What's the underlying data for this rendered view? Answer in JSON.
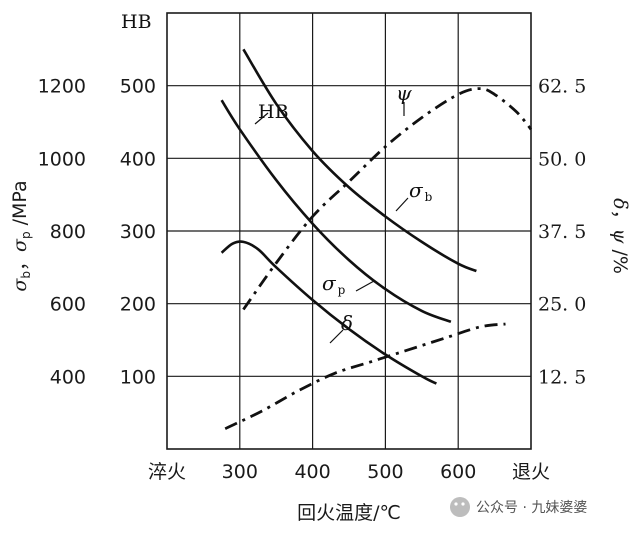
{
  "chart_data": {
    "type": "line",
    "xlabel": "回火温度/℃",
    "x_ticks": [
      "淬火",
      "300",
      "400",
      "500",
      "600",
      "退火"
    ],
    "x_tick_values": [
      200,
      300,
      400,
      500,
      600,
      700
    ],
    "xlim": [
      200,
      700
    ],
    "y_axes": {
      "hb": {
        "label": "HB",
        "ticks": [
          "100",
          "200",
          "300",
          "400",
          "500"
        ],
        "tick_values": [
          100,
          200,
          300,
          400,
          500
        ],
        "range": [
          0,
          600
        ]
      },
      "mpa": {
        "label": "σ_b，σ_p/MPa",
        "ticks": [
          "400",
          "600",
          "800",
          "1000",
          "1200"
        ],
        "tick_values": [
          400,
          600,
          800,
          1000,
          1200
        ],
        "range": [
          200,
          1400
        ]
      },
      "pct": {
        "label": "δ，ψ/%",
        "ticks": [
          "12. 5",
          "25. 0",
          "37. 5",
          "50. 0",
          "62. 5"
        ],
        "tick_values": [
          12.5,
          25.0,
          37.5,
          50.0,
          62.5
        ],
        "range": [
          0,
          75
        ]
      }
    },
    "grid": true,
    "series": [
      {
        "name": "HB",
        "axis": "hb",
        "style": "solid",
        "x": [
          275,
          300,
          350,
          400,
          450,
          500,
          550,
          590
        ],
        "y": [
          480,
          440,
          370,
          310,
          260,
          220,
          190,
          175
        ]
      },
      {
        "name": "σb",
        "axis": "mpa",
        "style": "solid",
        "x": [
          305,
          350,
          400,
          450,
          500,
          550,
          600,
          625
        ],
        "y": [
          1300,
          1150,
          1020,
          920,
          840,
          770,
          710,
          690
        ]
      },
      {
        "name": "σp",
        "axis": "mpa",
        "style": "solid",
        "x": [
          275,
          290,
          305,
          325,
          350,
          400,
          450,
          500,
          550,
          570
        ],
        "y": [
          740,
          765,
          770,
          750,
          700,
          610,
          530,
          460,
          400,
          380
        ]
      },
      {
        "name": "ψ",
        "axis": "pct",
        "style": "dash-dot",
        "x": [
          305,
          350,
          400,
          450,
          500,
          550,
          600,
          630,
          650,
          680,
          700
        ],
        "y": [
          24,
          32,
          40,
          46,
          52,
          57,
          61,
          62,
          61,
          58,
          55
        ]
      },
      {
        "name": "δ",
        "axis": "pct",
        "style": "dash-dot",
        "x": [
          280,
          330,
          380,
          430,
          480,
          530,
          580,
          630,
          665
        ],
        "y": [
          3.5,
          6.5,
          10,
          13,
          15,
          17,
          19,
          21,
          21.5
        ]
      }
    ],
    "labels": {
      "hb": "HB",
      "sigma_b": "σ",
      "sigma_b_sub": "b",
      "sigma_p": "σ",
      "sigma_p_sub": "p",
      "psi": "ψ",
      "delta": "δ"
    }
  },
  "watermark": "公众号 · 九妹婆婆"
}
